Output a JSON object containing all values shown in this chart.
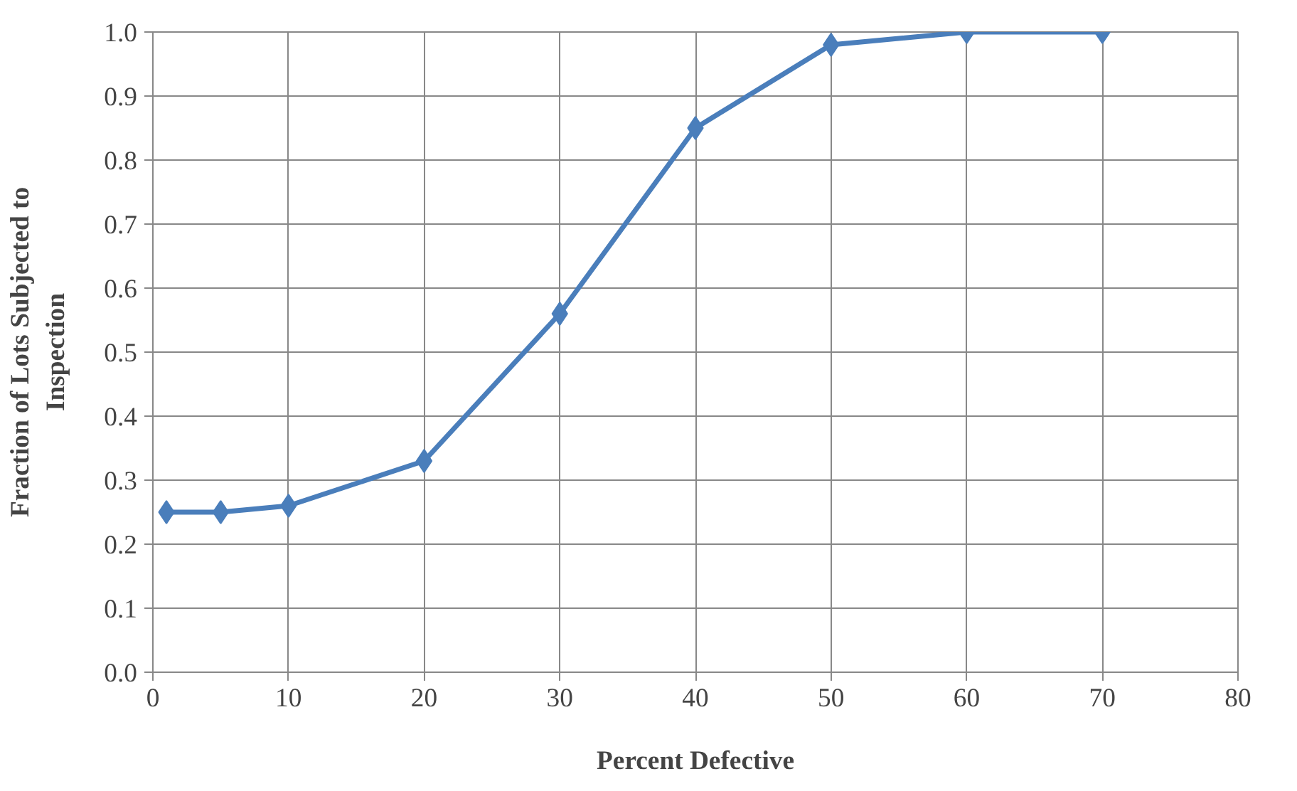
{
  "chart_data": {
    "type": "line",
    "xlabel": "Percent Defective",
    "ylabel": "Fraction of Lots Subjected to\nInspection",
    "x": [
      1,
      5,
      10,
      20,
      30,
      40,
      50,
      60,
      70
    ],
    "series": [
      {
        "color": "#4a7ebb",
        "values": [
          0.25,
          0.25,
          0.26,
          0.33,
          0.56,
          0.85,
          0.98,
          1.0,
          1.0
        ]
      }
    ],
    "xlim": [
      0,
      80
    ],
    "xticks": [
      0,
      10,
      20,
      30,
      40,
      50,
      60,
      70,
      80
    ],
    "ylim": [
      0,
      1.0
    ],
    "yticks": [
      {
        "value": 0,
        "label": "0.0"
      },
      {
        "value": 0.1,
        "label": "0.1"
      },
      {
        "value": 0.2,
        "label": "0.2"
      },
      {
        "value": 0.3,
        "label": "0.3"
      },
      {
        "value": 0.4,
        "label": "0.4"
      },
      {
        "value": 0.5,
        "label": "0.5"
      },
      {
        "value": 0.6,
        "label": "0.6"
      },
      {
        "value": 0.7,
        "label": "0.7"
      },
      {
        "value": 0.8,
        "label": "0.8"
      },
      {
        "value": 0.9,
        "label": "0.9"
      },
      {
        "value": 1.0,
        "label": "1.0"
      }
    ],
    "grid": true,
    "marker": "diamond",
    "line_style": "solid"
  }
}
